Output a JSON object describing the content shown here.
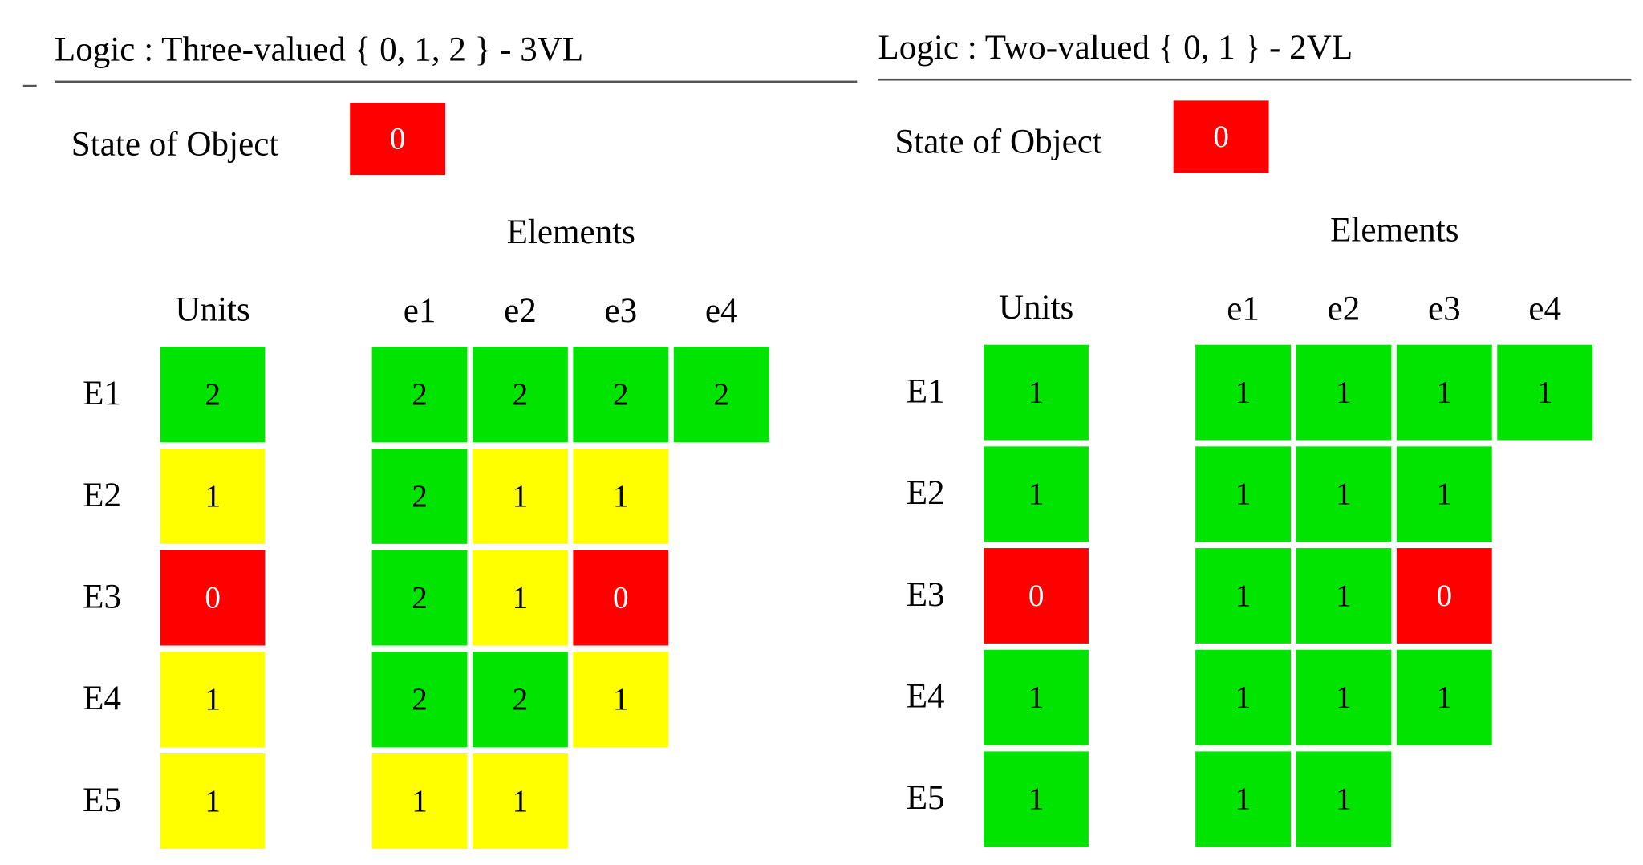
{
  "panels": [
    {
      "title": "Logic : Three-valued { 0, 1, 2 } - 3VL",
      "state_label": "State of Object",
      "state_value": 0,
      "elements_label": "Elements",
      "units_label": "Units",
      "columns": [
        "e1",
        "e2",
        "e3",
        "e4"
      ],
      "cell_colors": [
        "#ff0000",
        "#ffff00",
        "#00e400"
      ],
      "cell_text_colors": [
        "#ffffff",
        "#000000",
        "#000000"
      ],
      "rows": [
        {
          "label": "E1",
          "unit": 2,
          "elements": [
            2,
            2,
            2,
            2
          ]
        },
        {
          "label": "E2",
          "unit": 1,
          "elements": [
            2,
            1,
            1
          ]
        },
        {
          "label": "E3",
          "unit": 0,
          "elements": [
            2,
            1,
            0
          ]
        },
        {
          "label": "E4",
          "unit": 1,
          "elements": [
            2,
            2,
            1
          ]
        },
        {
          "label": "E5",
          "unit": 1,
          "elements": [
            1,
            1
          ]
        }
      ]
    },
    {
      "title": "Logic : Two-valued { 0, 1 } - 2VL",
      "state_label": "State of Object",
      "state_value": 0,
      "elements_label": "Elements",
      "units_label": "Units",
      "columns": [
        "e1",
        "e2",
        "e3",
        "e4"
      ],
      "cell_colors": [
        "#ff0000",
        "#00e400"
      ],
      "cell_text_colors": [
        "#ffffff",
        "#000000"
      ],
      "rows": [
        {
          "label": "E1",
          "unit": 1,
          "elements": [
            1,
            1,
            1,
            1
          ]
        },
        {
          "label": "E2",
          "unit": 1,
          "elements": [
            1,
            1,
            1
          ]
        },
        {
          "label": "E3",
          "unit": 0,
          "elements": [
            1,
            1,
            0
          ]
        },
        {
          "label": "E4",
          "unit": 1,
          "elements": [
            1,
            1,
            1
          ]
        },
        {
          "label": "E5",
          "unit": 1,
          "elements": [
            1,
            1
          ]
        }
      ]
    }
  ]
}
